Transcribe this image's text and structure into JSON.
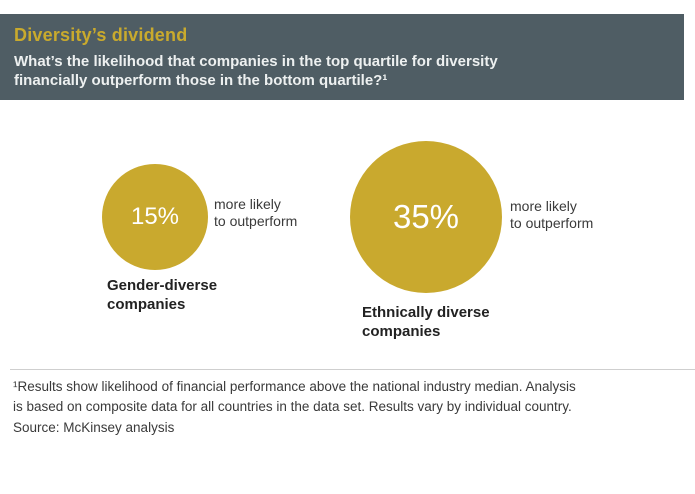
{
  "header": {
    "title": "Diversity’s dividend",
    "subtitle_line1": "What’s the likelihood that companies in the top quartile for diversity",
    "subtitle_line2": "financially outperform those in the bottom quartile?¹"
  },
  "chart_data": {
    "type": "bubble",
    "variant": "proportional-area circles",
    "title": "Diversity’s dividend",
    "subtitle": "What’s the likelihood that companies in the top quartile for diversity financially outperform those in the bottom quartile?¹",
    "categories": [
      "Gender-diverse companies",
      "Ethnically diverse companies"
    ],
    "values": [
      15,
      35
    ],
    "unit": "%",
    "value_labels": [
      "15%",
      "35%"
    ],
    "annotation_per_bubble": "more likely to outperform",
    "legend": "none",
    "accent_color": "#c9a92e"
  },
  "bubbles": [
    {
      "value_label": "15%",
      "note_line1": "more likely",
      "note_line2": "to outperform",
      "label_line1": "Gender-diverse",
      "label_line2": "companies"
    },
    {
      "value_label": "35%",
      "note_line1": "more likely",
      "note_line2": "to outperform",
      "label_line1": "Ethnically diverse",
      "label_line2": "companies"
    }
  ],
  "footnote": {
    "line1": "¹Results show likelihood of financial performance above the national industry median. Analysis",
    "line2": "is based on composite data for all countries in the data set. Results vary by individual country.",
    "source": "Source: McKinsey analysis"
  },
  "colors": {
    "header_background": "#4f5d64",
    "gold": "#c9a92e",
    "title_text": "#c9aa2d",
    "subtitle_text": "#edf0f0",
    "body_text": "#3a3a3a"
  }
}
